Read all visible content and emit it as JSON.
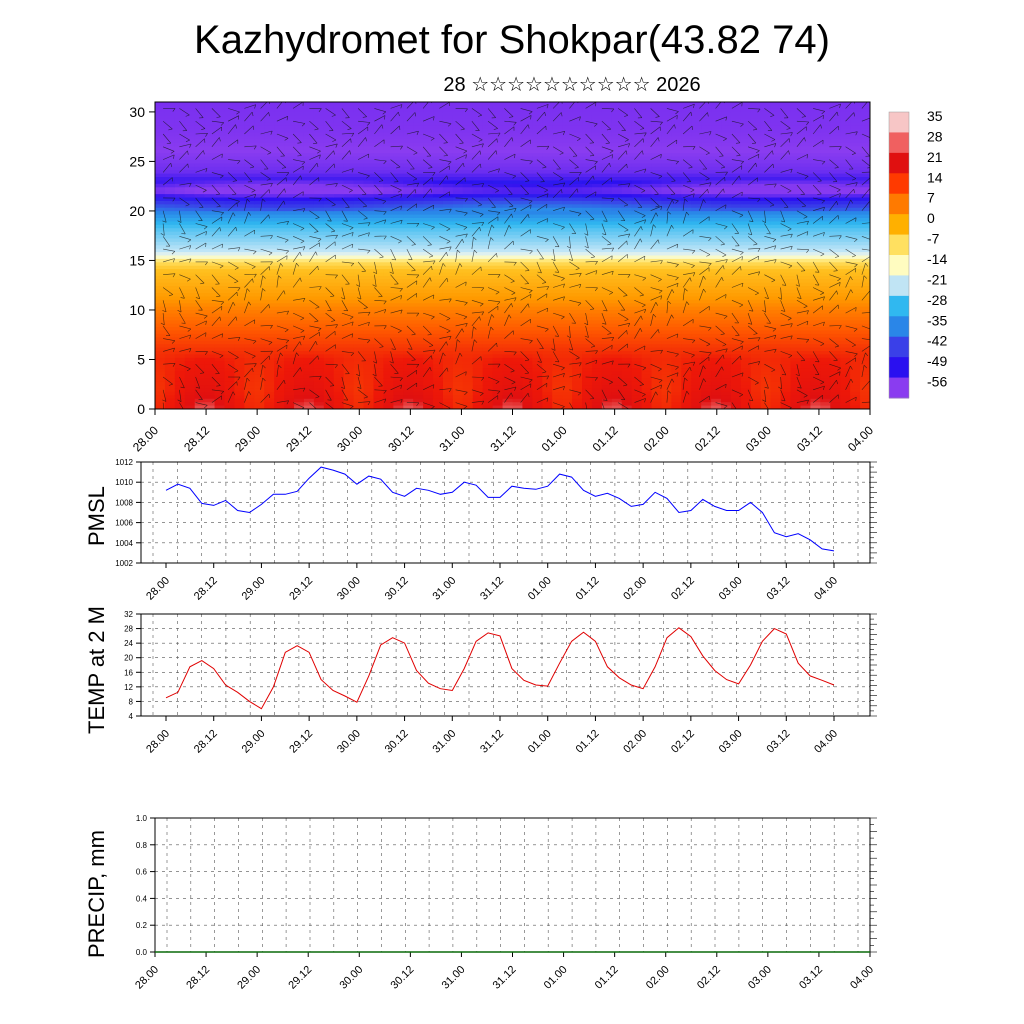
{
  "page": {
    "title": "Kazhydromet for Shokpar(43.82 74)",
    "subtitle": "28 ☆☆☆☆☆☆☆☆☆☆ 2026"
  },
  "time_ticks": [
    "28.00",
    "28.12",
    "29.00",
    "29.12",
    "30.00",
    "30.12",
    "31.00",
    "31.12",
    "01.00",
    "01.12",
    "02.00",
    "02.12",
    "03.00",
    "03.12",
    "04.00"
  ],
  "chart_data": [
    {
      "type": "heatmap",
      "ylabel": "",
      "ylim": [
        0,
        31
      ],
      "y_ticks": [
        0,
        5,
        10,
        15,
        20,
        25,
        30
      ],
      "colorbar": {
        "labels": [
          "35",
          "28",
          "21",
          "14",
          "7",
          "0",
          "-7",
          "-14",
          "-21",
          "-28",
          "-35",
          "-42",
          "-49",
          "-56"
        ],
        "colors": [
          "#f7c6c6",
          "#f06060",
          "#e01010",
          "#ff3a00",
          "#ff7a00",
          "#ffb000",
          "#ffe060",
          "#fffcc0",
          "#c0e4f4",
          "#30b8f0",
          "#2a86e8",
          "#3a40e8",
          "#2a10f0",
          "#8a3cf0"
        ]
      },
      "series": [
        {
          "values_by_time": "height (km) vs temperature (°C)",
          "profile_height": [
            0,
            2,
            5,
            8,
            10,
            12,
            14,
            15,
            16,
            18,
            19,
            20,
            21,
            22,
            23,
            24,
            26,
            28,
            31
          ],
          "profile_temp": [
            25,
            22,
            20,
            14,
            10,
            5,
            0,
            -8,
            -16,
            -24,
            -30,
            -36,
            -44,
            -56,
            -50,
            -54,
            -56,
            -60,
            -62
          ]
        }
      ]
    },
    {
      "type": "line",
      "ylabel": "PMSL",
      "ylim": [
        1002,
        1012
      ],
      "y_ticks": [
        1002,
        1004,
        1006,
        1008,
        1010,
        1012
      ],
      "series": [
        {
          "color": "#0000ff",
          "values": [
            1009.2,
            1009.8,
            1009.4,
            1007.9,
            1007.7,
            1008.2,
            1007.2,
            1007.0,
            1007.8,
            1008.8,
            1008.8,
            1009.1,
            1010.4,
            1011.5,
            1011.2,
            1010.8,
            1009.8,
            1010.6,
            1010.3,
            1009.0,
            1008.6,
            1009.4,
            1009.2,
            1008.8,
            1009.0,
            1010.0,
            1009.7,
            1008.5,
            1008.5,
            1009.6,
            1009.4,
            1009.3,
            1009.6,
            1010.8,
            1010.5,
            1009.2,
            1008.6,
            1008.9,
            1008.4,
            1007.6,
            1007.8,
            1009.0,
            1008.4,
            1007.0,
            1007.2,
            1008.3,
            1007.6,
            1007.2,
            1007.2,
            1008.0,
            1007.0,
            1005.0,
            1004.6,
            1004.9,
            1004.3,
            1003.4,
            1003.2
          ],
          "x_range": [
            "28.00",
            "04.00"
          ]
        }
      ]
    },
    {
      "type": "line",
      "ylabel": "TEMP at 2 M",
      "ylim": [
        4,
        32
      ],
      "y_ticks": [
        4,
        8,
        12,
        16,
        20,
        24,
        28,
        32
      ],
      "series": [
        {
          "color": "#e00000",
          "values": [
            9.0,
            10.5,
            17.5,
            19.2,
            17.0,
            12.5,
            10.5,
            8.0,
            6.0,
            12.0,
            21.5,
            23.3,
            21.5,
            14.0,
            11.0,
            9.5,
            7.8,
            15.0,
            23.5,
            25.5,
            24.0,
            16.5,
            13.0,
            11.5,
            11.0,
            17.0,
            24.5,
            26.8,
            26.0,
            17.0,
            13.8,
            12.5,
            12.2,
            18.5,
            24.5,
            27.0,
            24.5,
            17.5,
            14.5,
            12.5,
            11.5,
            17.5,
            25.5,
            28.2,
            25.8,
            20.5,
            16.5,
            14.0,
            12.8,
            18.0,
            24.5,
            28.0,
            26.5,
            18.5,
            15.0,
            13.8,
            12.5
          ],
          "x_range": [
            "28.00",
            "04.00"
          ]
        }
      ]
    },
    {
      "type": "bar",
      "ylabel": "PRECIP, mm",
      "ylim": [
        0.0,
        1.0
      ],
      "y_ticks": [
        "0.0",
        "0.2",
        "0.4",
        "0.6",
        "0.8",
        "1.0"
      ],
      "series": [
        {
          "color": "#0a6a0a",
          "values": [
            0,
            0,
            0,
            0,
            0,
            0,
            0,
            0,
            0,
            0,
            0,
            0,
            0,
            0,
            0,
            0,
            0,
            0,
            0,
            0,
            0,
            0,
            0,
            0,
            0,
            0,
            0,
            0,
            0,
            0,
            0,
            0,
            0,
            0,
            0,
            0,
            0,
            0,
            0,
            0,
            0,
            0,
            0,
            0,
            0,
            0,
            0,
            0,
            0,
            0,
            0,
            0,
            0,
            0,
            0,
            0,
            0
          ]
        }
      ]
    }
  ]
}
